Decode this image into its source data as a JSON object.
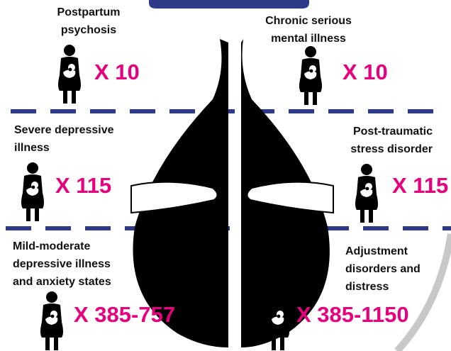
{
  "items": [
    {
      "label_lines": [
        "Postpartum",
        "psychosis"
      ],
      "count": "X 10"
    },
    {
      "label_lines": [
        "Chronic serious",
        "mental illness"
      ],
      "count": "X 10"
    },
    {
      "label_lines": [
        "Severe depressive",
        "illness"
      ],
      "count": "X 115"
    },
    {
      "label_lines": [
        "Post-traumatic",
        "stress disorder"
      ],
      "count": "X 115"
    },
    {
      "label_lines": [
        "Mild-moderate",
        "depressive illness",
        "and anxiety states"
      ],
      "count": "X 385-757"
    },
    {
      "label_lines": [
        "Adjustment",
        "disorders and",
        "distress"
      ],
      "count": "X 385-1150"
    }
  ]
}
